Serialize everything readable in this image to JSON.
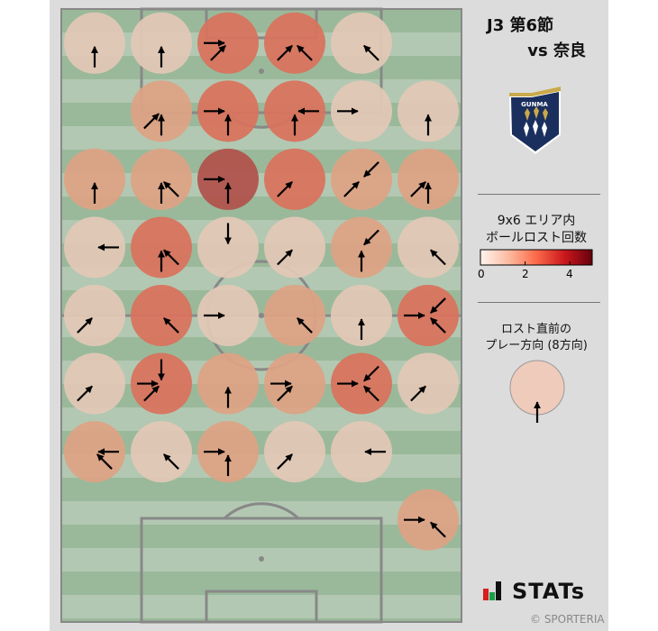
{
  "header": {
    "title_line1": "J3 第6節",
    "title_line2": "vs 奈良"
  },
  "team_logo": {
    "text": "GUNMA",
    "colors": {
      "navy": "#1b2f5e",
      "gold": "#c9a94a"
    }
  },
  "colorbar": {
    "label_line1": "9x6 エリア内",
    "label_line2": "ボールロスト回数",
    "min": 0,
    "max": 5,
    "ticks": [
      "0",
      "2",
      "4"
    ],
    "colormap": "Reds"
  },
  "direction_legend": {
    "label_line1": "ロスト直前の",
    "label_line2": "プレー方向 (8方向)",
    "example_direction": "N"
  },
  "count_colors": {
    "1": "#e2c8b6",
    "2": "#dea384",
    "3": "#d9725d",
    "4": "#b0524b"
  },
  "grid": {
    "rows": 9,
    "cols": 6,
    "cells": [
      {
        "row": 1,
        "col": 1,
        "count": 1,
        "dirs": [
          "N"
        ]
      },
      {
        "row": 1,
        "col": 2,
        "count": 1,
        "dirs": [
          "N"
        ]
      },
      {
        "row": 1,
        "col": 3,
        "count": 3,
        "dirs": [
          "E",
          "NE"
        ]
      },
      {
        "row": 1,
        "col": 4,
        "count": 3,
        "dirs": [
          "NE",
          "NW"
        ]
      },
      {
        "row": 1,
        "col": 5,
        "count": 1,
        "dirs": [
          "NW"
        ]
      },
      {
        "row": 2,
        "col": 2,
        "count": 2,
        "dirs": [
          "NE",
          "N"
        ]
      },
      {
        "row": 2,
        "col": 3,
        "count": 3,
        "dirs": [
          "E",
          "N"
        ]
      },
      {
        "row": 2,
        "col": 4,
        "count": 3,
        "dirs": [
          "W",
          "N"
        ]
      },
      {
        "row": 2,
        "col": 5,
        "count": 1,
        "dirs": [
          "E"
        ]
      },
      {
        "row": 2,
        "col": 6,
        "count": 1,
        "dirs": [
          "N"
        ]
      },
      {
        "row": 3,
        "col": 1,
        "count": 2,
        "dirs": [
          "N"
        ]
      },
      {
        "row": 3,
        "col": 2,
        "count": 2,
        "dirs": [
          "N",
          "NW"
        ]
      },
      {
        "row": 3,
        "col": 3,
        "count": 4,
        "dirs": [
          "E",
          "N"
        ]
      },
      {
        "row": 3,
        "col": 4,
        "count": 3,
        "dirs": [
          "NE"
        ]
      },
      {
        "row": 3,
        "col": 5,
        "count": 2,
        "dirs": [
          "SW",
          "NE"
        ]
      },
      {
        "row": 3,
        "col": 6,
        "count": 2,
        "dirs": [
          "NE",
          "N"
        ]
      },
      {
        "row": 4,
        "col": 1,
        "count": 1,
        "dirs": [
          "W"
        ]
      },
      {
        "row": 4,
        "col": 2,
        "count": 3,
        "dirs": [
          "N",
          "NW"
        ]
      },
      {
        "row": 4,
        "col": 3,
        "count": 1,
        "dirs": [
          "S"
        ]
      },
      {
        "row": 4,
        "col": 4,
        "count": 1,
        "dirs": [
          "NE"
        ]
      },
      {
        "row": 4,
        "col": 5,
        "count": 2,
        "dirs": [
          "SW",
          "N"
        ]
      },
      {
        "row": 4,
        "col": 6,
        "count": 1,
        "dirs": [
          "NW"
        ]
      },
      {
        "row": 5,
        "col": 1,
        "count": 1,
        "dirs": [
          "NE"
        ]
      },
      {
        "row": 5,
        "col": 2,
        "count": 3,
        "dirs": [
          "NW"
        ]
      },
      {
        "row": 5,
        "col": 3,
        "count": 1,
        "dirs": [
          "E"
        ]
      },
      {
        "row": 5,
        "col": 4,
        "count": 2,
        "dirs": [
          "NW"
        ]
      },
      {
        "row": 5,
        "col": 5,
        "count": 1,
        "dirs": [
          "N"
        ]
      },
      {
        "row": 5,
        "col": 6,
        "count": 3,
        "dirs": [
          "E",
          "SW",
          "NW"
        ]
      },
      {
        "row": 6,
        "col": 1,
        "count": 1,
        "dirs": [
          "NE"
        ]
      },
      {
        "row": 6,
        "col": 2,
        "count": 3,
        "dirs": [
          "S",
          "E",
          "NE"
        ]
      },
      {
        "row": 6,
        "col": 3,
        "count": 2,
        "dirs": [
          "N"
        ]
      },
      {
        "row": 6,
        "col": 4,
        "count": 2,
        "dirs": [
          "E",
          "NE"
        ]
      },
      {
        "row": 6,
        "col": 5,
        "count": 3,
        "dirs": [
          "E",
          "SW",
          "NW"
        ]
      },
      {
        "row": 6,
        "col": 6,
        "count": 1,
        "dirs": [
          "NE"
        ]
      },
      {
        "row": 7,
        "col": 1,
        "count": 2,
        "dirs": [
          "W",
          "NW"
        ]
      },
      {
        "row": 7,
        "col": 2,
        "count": 1,
        "dirs": [
          "NW"
        ]
      },
      {
        "row": 7,
        "col": 3,
        "count": 2,
        "dirs": [
          "E",
          "N"
        ]
      },
      {
        "row": 7,
        "col": 4,
        "count": 1,
        "dirs": [
          "NE"
        ]
      },
      {
        "row": 7,
        "col": 5,
        "count": 1,
        "dirs": [
          "W"
        ]
      },
      {
        "row": 8,
        "col": 6,
        "count": 2,
        "dirs": [
          "E",
          "NW"
        ]
      }
    ]
  },
  "footer": {
    "brand": "STATs",
    "copyright": "© SPORTERIA"
  }
}
